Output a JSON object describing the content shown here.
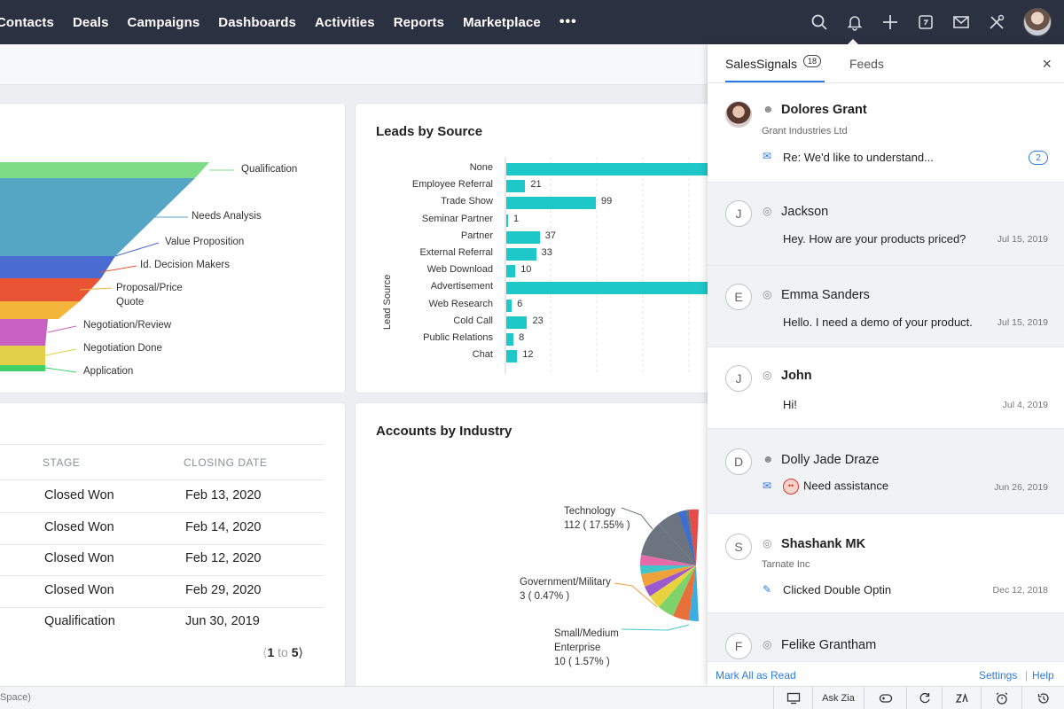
{
  "nav": {
    "items": [
      "Contacts",
      "Deals",
      "Campaigns",
      "Dashboards",
      "Activities",
      "Reports",
      "Marketplace"
    ],
    "more": "•••"
  },
  "funnel": {
    "labels": [
      "Qualification",
      "Needs Analysis",
      "Value Proposition",
      "Id. Decision Makers",
      "Proposal/Price",
      "Quote",
      "Negotiation/Review",
      "Negotiation Done",
      "Application"
    ]
  },
  "leads": {
    "title": "Leads by Source",
    "axis_label": "Lead Source"
  },
  "chart_data": {
    "type": "bar",
    "orientation": "horizontal",
    "title": "Leads by Source",
    "ylabel": "Lead Source",
    "categories": [
      "None",
      "Employee Referral",
      "Trade Show",
      "Seminar Partner",
      "Partner",
      "External Referral",
      "Web Download",
      "Advertisement",
      "Web Research",
      "Cold Call",
      "Public Relations",
      "Chat"
    ],
    "values": [
      null,
      21,
      99,
      1,
      37,
      33,
      10,
      null,
      6,
      23,
      8,
      12
    ],
    "data_labels": [
      "",
      "21",
      "99",
      "1",
      "37",
      "33",
      "10",
      "",
      "6",
      "23",
      "8",
      "12"
    ],
    "colors": [
      "#1ec8c8"
    ]
  },
  "deals_table": {
    "headers": [
      "STAGE",
      "CLOSING DATE"
    ],
    "rows": [
      [
        "Closed Won",
        "Feb 13, 2020"
      ],
      [
        "Closed Won",
        "Feb 14, 2020"
      ],
      [
        "Closed Won",
        "Feb 12, 2020"
      ],
      [
        "Closed Won",
        "Feb 29, 2020"
      ],
      [
        "Qualification",
        "Jun 30, 2019"
      ]
    ],
    "pager": {
      "from": "1",
      "to_word": "to",
      "to": "5"
    }
  },
  "accounts": {
    "title": "Accounts by Industry",
    "labels": [
      {
        "name": "Technology",
        "value": "112 ( 17.55% )"
      },
      {
        "name": "Government/Military",
        "value": "3 ( 0.47% )"
      },
      {
        "name": "Small/Medium",
        "name2": "Enterprise",
        "value": "10 ( 1.57% )"
      }
    ]
  },
  "panel": {
    "tab_signals": "SalesSignals",
    "signals_count": "18",
    "tab_feeds": "Feeds",
    "close": "×",
    "signals": [
      {
        "avatar": "",
        "name": "Dolores Grant",
        "company": "Grant Industries Ltd",
        "message": "Re: We'd like to understand...",
        "count": "2"
      },
      {
        "avatar": "J",
        "name": "Jackson",
        "message": "Hey. How are your products priced?",
        "date": "Jul 15, 2019"
      },
      {
        "avatar": "E",
        "name": "Emma Sanders",
        "message": "Hello. I need a demo of your product.",
        "date": "Jul 15, 2019"
      },
      {
        "avatar": "J",
        "name": "John",
        "message": "Hi!",
        "date": "Jul 4, 2019"
      },
      {
        "avatar": "D",
        "name": "Dolly Jade Draze",
        "message": "Need assistance",
        "date": "Jun 26, 2019"
      },
      {
        "avatar": "S",
        "name": "Shashank MK",
        "company": "Tarnate Inc",
        "message": "Clicked Double Optin",
        "date": "Dec 12, 2018"
      },
      {
        "avatar": "F",
        "name": "Felike Grantham"
      }
    ],
    "mark_all": "Mark All as Read",
    "settings": "Settings",
    "separator": "|",
    "help": "Help"
  },
  "bottom": {
    "left_text": "Space)",
    "ask_zia": "Ask Zia"
  }
}
